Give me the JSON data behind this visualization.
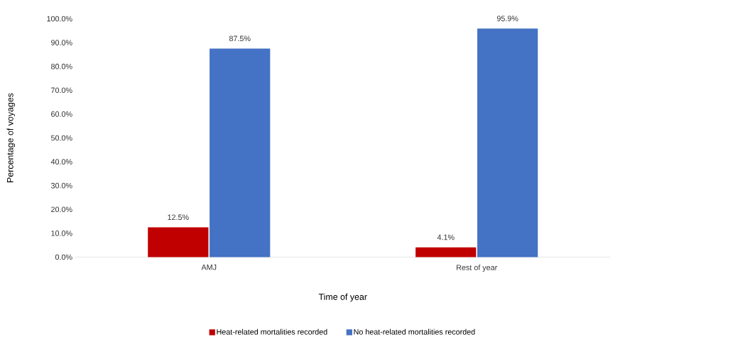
{
  "chart_data": {
    "type": "bar",
    "xlabel": "Time of year",
    "ylabel": "Percentage of voyages",
    "categories": [
      "AMJ",
      "Rest of year"
    ],
    "series": [
      {
        "name": "Heat-related mortalities recorded",
        "color": "#c00000",
        "values": [
          12.5,
          4.1
        ],
        "value_labels": [
          "12.5%",
          "4.1%"
        ]
      },
      {
        "name": "No heat-related mortalities recorded",
        "color": "#4472c4",
        "values": [
          87.5,
          95.9
        ],
        "value_labels": [
          "87.5%",
          "95.9%"
        ]
      }
    ],
    "ylim": [
      0,
      100
    ],
    "yticks": [
      {
        "value": 0,
        "label": "0.0%"
      },
      {
        "value": 10,
        "label": "10.0%"
      },
      {
        "value": 20,
        "label": "20.0%"
      },
      {
        "value": 30,
        "label": "30.0%"
      },
      {
        "value": 40,
        "label": "40.0%"
      },
      {
        "value": 50,
        "label": "50.0%"
      },
      {
        "value": 60,
        "label": "60.0%"
      },
      {
        "value": 70,
        "label": "70.0%"
      },
      {
        "value": 80,
        "label": "80.0%"
      },
      {
        "value": 90,
        "label": "90.0%"
      },
      {
        "value": 100,
        "label": "100.0%"
      }
    ],
    "grid": false,
    "legend": "bottom"
  }
}
